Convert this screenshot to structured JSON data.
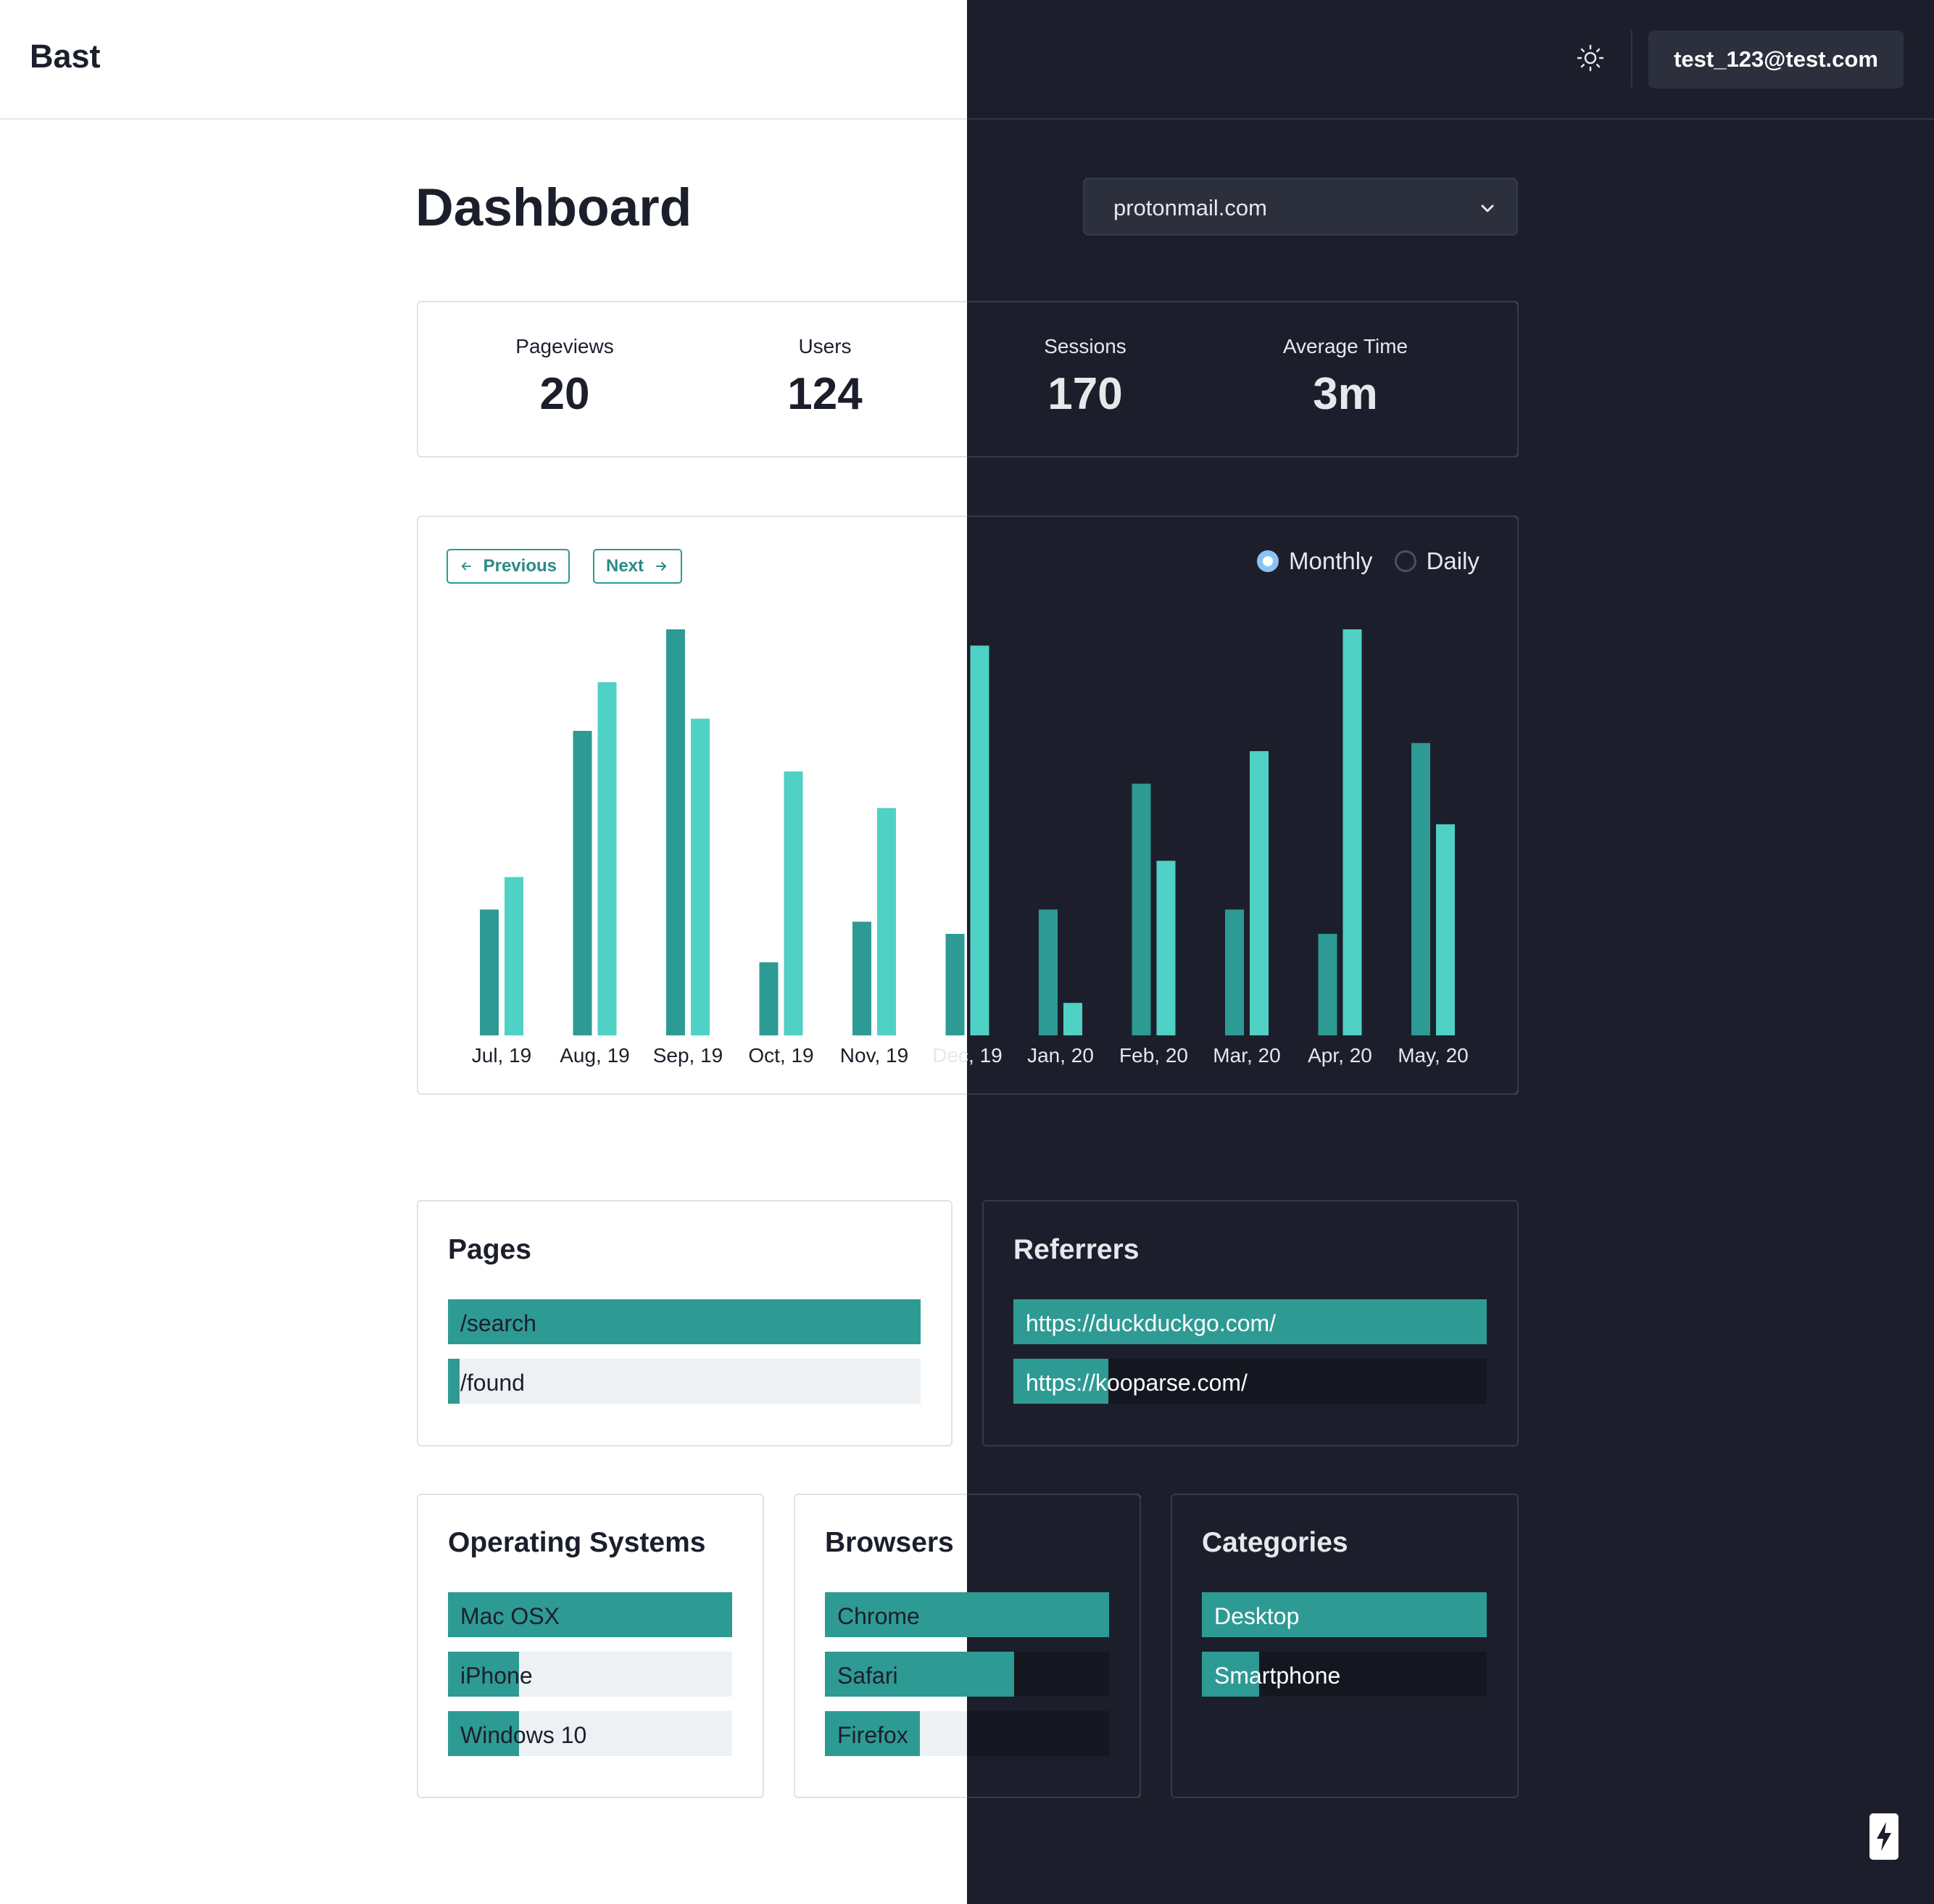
{
  "header": {
    "brand": "Bast",
    "theme_icon": "sun-icon",
    "user_email": "test_123@test.com"
  },
  "page": {
    "title": "Dashboard",
    "site_selected": "protonmail.com"
  },
  "stats": [
    {
      "label": "Pageviews",
      "value": "20"
    },
    {
      "label": "Users",
      "value": "124"
    },
    {
      "label": "Sessions",
      "value": "170"
    },
    {
      "label": "Average Time",
      "value": "3m"
    }
  ],
  "chart_controls": {
    "previous_label": "Previous",
    "next_label": "Next",
    "monthly_label": "Monthly",
    "daily_label": "Daily",
    "selected": "Monthly"
  },
  "chart_data": {
    "type": "bar",
    "categories": [
      "Jul, 19",
      "Aug, 19",
      "Sep, 19",
      "Oct, 19",
      "Nov, 19",
      "Dec, 19",
      "Jan, 20",
      "Feb, 20",
      "Mar, 20",
      "Apr, 20",
      "May, 20"
    ],
    "series": [
      {
        "values": [
          31,
          75,
          100,
          18,
          28,
          25,
          31,
          62,
          31,
          25,
          72
        ]
      },
      {
        "values": [
          39,
          87,
          78,
          65,
          56,
          96,
          8,
          43,
          70,
          100,
          52
        ]
      }
    ],
    "ylim": [
      0,
      100
    ],
    "grid": false,
    "colors": [
      "#2e9a94",
      "#4fd1c5"
    ]
  },
  "pages": {
    "title": "Pages",
    "items": [
      {
        "label": "/search",
        "fraction": 1.0
      },
      {
        "label": "/found",
        "fraction": 0.025
      }
    ]
  },
  "referrers": {
    "title": "Referrers",
    "items": [
      {
        "label": "https://duckduckgo.com/",
        "fraction": 1.0
      },
      {
        "label": "https://kooparse.com/",
        "fraction": 0.2
      }
    ]
  },
  "operating_systems": {
    "title": "Operating Systems",
    "items": [
      {
        "label": "Mac OSX",
        "fraction": 1.0
      },
      {
        "label": "iPhone",
        "fraction": 0.25
      },
      {
        "label": "Windows 10",
        "fraction": 0.25
      }
    ]
  },
  "browsers": {
    "title": "Browsers",
    "items": [
      {
        "label": "Chrome",
        "fraction": 1.0
      },
      {
        "label": "Safari",
        "fraction": 0.667
      },
      {
        "label": "Firefox",
        "fraction": 0.333
      }
    ]
  },
  "categories": {
    "title": "Categories",
    "items": [
      {
        "label": "Desktop",
        "fraction": 1.0
      },
      {
        "label": "Smartphone",
        "fraction": 0.2
      }
    ]
  },
  "colors": {
    "accent": "#2e9a94",
    "accent_light": "#4fd1c5",
    "dark_bg": "#1c1f2b",
    "light_track": "#edf1f4",
    "dark_track": "#151720"
  }
}
